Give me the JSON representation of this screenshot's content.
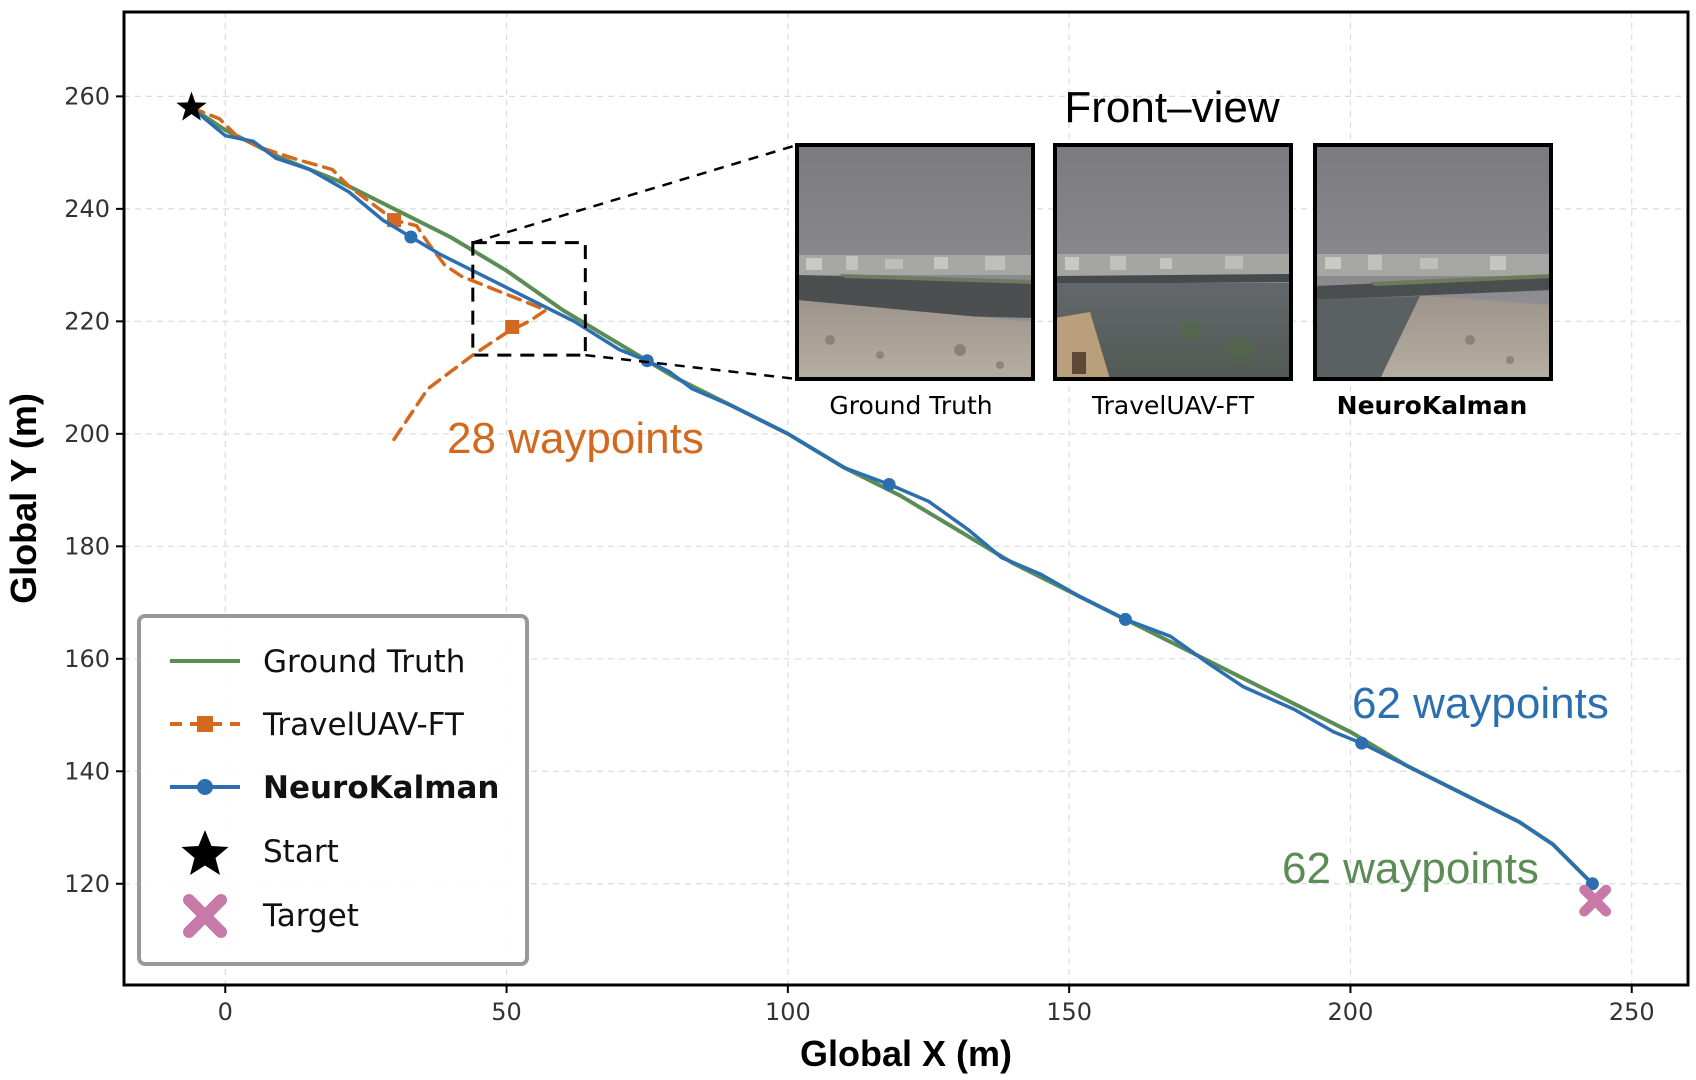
{
  "chart_data": {
    "type": "line",
    "xlabel": "Global X (m)",
    "ylabel": "Global Y (m)",
    "xlim": [
      -18,
      260
    ],
    "ylim": [
      102,
      275
    ],
    "xticks": [
      0,
      50,
      100,
      150,
      200,
      250
    ],
    "yticks": [
      120,
      140,
      160,
      180,
      200,
      220,
      240,
      260
    ],
    "grid": true,
    "legend_position": "bottom-left",
    "series": [
      {
        "name": "Ground Truth",
        "color": "#5b8c55",
        "style": "solid",
        "x": [
          -6,
          0,
          10,
          20,
          30,
          40,
          50,
          60,
          70,
          80,
          90,
          100,
          110,
          120,
          130,
          140,
          150,
          160,
          170,
          180,
          190,
          200,
          210,
          220,
          230,
          236,
          240,
          243
        ],
        "y": [
          258,
          254,
          249,
          245,
          240,
          235,
          229,
          222,
          216,
          210,
          205,
          200,
          194,
          189,
          183,
          177,
          172,
          167,
          162,
          157,
          152,
          147,
          141,
          136,
          131,
          127,
          123,
          120
        ]
      },
      {
        "name": "TravelUAV-FT",
        "color": "#d2691e",
        "style": "dashed",
        "x": [
          -6,
          -1,
          2,
          6,
          12,
          19,
          22,
          26,
          30,
          34,
          36,
          39,
          42,
          47,
          52,
          57,
          54,
          50,
          44,
          36,
          30
        ],
        "y": [
          258,
          256,
          253,
          251,
          249,
          247,
          244,
          241,
          238,
          237,
          234,
          230,
          228,
          226,
          224,
          222,
          220,
          218,
          214,
          208,
          199
        ],
        "marker_x": [
          30,
          51
        ],
        "marker_y": [
          238,
          219
        ]
      },
      {
        "name": "NeuroKalman",
        "color": "#2c6fb0",
        "style": "solid",
        "x": [
          -6,
          0,
          5,
          9,
          15,
          22,
          28,
          33,
          38,
          44,
          50,
          56,
          62,
          70,
          75,
          79,
          83,
          90,
          100,
          110,
          118,
          125,
          132,
          138,
          145,
          152,
          160,
          168,
          175,
          181,
          190,
          197,
          202,
          210,
          220,
          230,
          236,
          240,
          243
        ],
        "y": [
          258,
          253,
          252,
          249,
          247,
          243,
          238,
          235,
          232,
          229,
          226,
          223,
          220,
          215,
          213,
          211,
          208,
          205,
          200,
          194,
          191,
          188,
          183,
          178,
          175,
          171,
          167,
          164,
          159,
          155,
          151,
          147,
          145,
          141,
          136,
          131,
          127,
          123,
          120
        ],
        "marker_x": [
          33,
          75,
          118,
          160,
          202,
          243
        ],
        "marker_y": [
          235,
          213,
          191,
          167,
          145,
          120
        ]
      }
    ],
    "start": {
      "name": "Start",
      "x": -6,
      "y": 258,
      "color": "#000000"
    },
    "target": {
      "name": "Target",
      "x": 243.5,
      "y": 117,
      "color": "#c77aa8"
    },
    "annotations": [
      {
        "text": "28 waypoints",
        "color": "#d2691e"
      },
      {
        "text": "62 waypoints",
        "color": "#2c6fb0"
      },
      {
        "text": "62 waypoints",
        "color": "#5b8c55"
      }
    ],
    "zoom_box": {
      "x": [
        44,
        64
      ],
      "y": [
        214,
        234
      ]
    },
    "inset": {
      "title": "Front–view",
      "captions": [
        "Ground Truth",
        "TravelUAV-FT",
        "NeuroKalman"
      ]
    }
  }
}
